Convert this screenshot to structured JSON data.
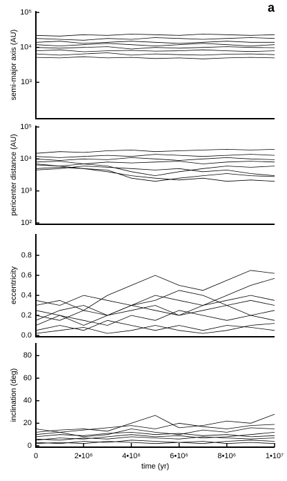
{
  "title": "a",
  "chart_data": [
    {
      "type": "line",
      "ylabel": "semi-major axis (AU)",
      "log": true,
      "color": "#000000",
      "ylim": [
        100,
        100000
      ],
      "yticks": [
        {
          "value": 1000,
          "label": "10³"
        },
        {
          "value": 10000,
          "label": "10⁴"
        },
        {
          "value": 100000,
          "label": "10⁵"
        }
      ],
      "x": [
        0,
        1000000,
        2000000,
        3000000,
        4000000,
        5000000,
        6000000,
        7000000,
        8000000,
        9000000,
        10000000
      ],
      "xlim": [
        0,
        10000000
      ],
      "series": [
        {
          "values": [
            22000,
            21000,
            23000,
            22000,
            24000,
            23000,
            22000,
            24000,
            23000,
            22000,
            23000
          ]
        },
        {
          "values": [
            18000,
            17000,
            16000,
            18000,
            17000,
            19000,
            18000,
            17000,
            18000,
            19000,
            18000
          ]
        },
        {
          "values": [
            14000,
            15000,
            13000,
            14000,
            15000,
            14000,
            13000,
            14000,
            15000,
            14000,
            14000
          ]
        },
        {
          "values": [
            12000,
            11000,
            12000,
            13000,
            12000,
            11000,
            12000,
            13000,
            12000,
            11000,
            12000
          ]
        },
        {
          "values": [
            10000,
            9500,
            10000,
            10500,
            9000,
            10000,
            9500,
            10000,
            10500,
            10000,
            9800
          ]
        },
        {
          "values": [
            8000,
            8500,
            7500,
            8000,
            8200,
            7800,
            8000,
            8500,
            8000,
            7600,
            8000
          ]
        },
        {
          "values": [
            6500,
            6000,
            6500,
            7000,
            6000,
            6500,
            6200,
            6000,
            6400,
            6500,
            6200
          ]
        },
        {
          "values": [
            5200,
            5000,
            5400,
            5000,
            5200,
            4800,
            5000,
            4700,
            5000,
            5200,
            5000
          ]
        }
      ]
    },
    {
      "type": "line",
      "ylabel": "pericenter distance (AU)",
      "log": true,
      "color": "#000000",
      "ylim": [
        100,
        100000
      ],
      "yticks": [
        {
          "value": 100,
          "label": "10²"
        },
        {
          "value": 1000,
          "label": "10³"
        },
        {
          "value": 10000,
          "label": "10⁴"
        },
        {
          "value": 100000,
          "label": "10⁵"
        }
      ],
      "x": [
        0,
        1000000,
        2000000,
        3000000,
        4000000,
        5000000,
        6000000,
        7000000,
        8000000,
        9000000,
        10000000
      ],
      "xlim": [
        0,
        10000000
      ],
      "series": [
        {
          "values": [
            15000,
            17000,
            16000,
            18000,
            19000,
            17000,
            18000,
            19000,
            20000,
            19000,
            20000
          ]
        },
        {
          "values": [
            12000,
            11000,
            12000,
            13000,
            12000,
            14000,
            13000,
            12000,
            13000,
            14000,
            13000
          ]
        },
        {
          "values": [
            10000,
            9000,
            10000,
            9500,
            11000,
            10000,
            9000,
            10000,
            11000,
            10000,
            9500
          ]
        },
        {
          "values": [
            8000,
            8500,
            7000,
            8000,
            7500,
            8000,
            8500,
            7000,
            8000,
            8500,
            8000
          ]
        },
        {
          "values": [
            6500,
            6000,
            7000,
            6000,
            4000,
            3000,
            4000,
            5000,
            6000,
            5500,
            6000
          ]
        },
        {
          "values": [
            5000,
            5500,
            5000,
            4500,
            2500,
            2000,
            2500,
            3000,
            3500,
            3000,
            2800
          ]
        },
        {
          "values": [
            7000,
            6000,
            5000,
            4000,
            3000,
            2500,
            2200,
            2500,
            2000,
            2200,
            2000
          ]
        },
        {
          "values": [
            4500,
            5000,
            6000,
            5500,
            5000,
            4500,
            5000,
            4000,
            4500,
            3500,
            3000
          ]
        }
      ]
    },
    {
      "type": "line",
      "ylabel": "eccentricity",
      "color": "#000000",
      "ylim": [
        0,
        1
      ],
      "yticks": [
        {
          "value": 0,
          "label": "0.0"
        },
        0.2,
        0.4,
        0.6,
        0.8
      ],
      "x": [
        0,
        1000000,
        2000000,
        3000000,
        4000000,
        5000000,
        6000000,
        7000000,
        8000000,
        9000000,
        10000000
      ],
      "xlim": [
        0,
        10000000
      ],
      "series": [
        {
          "values": [
            0.3,
            0.35,
            0.25,
            0.4,
            0.5,
            0.6,
            0.5,
            0.45,
            0.55,
            0.65,
            0.62
          ]
        },
        {
          "values": [
            0.2,
            0.15,
            0.25,
            0.2,
            0.3,
            0.25,
            0.2,
            0.3,
            0.4,
            0.5,
            0.57
          ]
        },
        {
          "values": [
            0.1,
            0.2,
            0.15,
            0.1,
            0.2,
            0.15,
            0.25,
            0.2,
            0.15,
            0.2,
            0.25
          ]
        },
        {
          "values": [
            0.05,
            0.1,
            0.05,
            0.15,
            0.1,
            0.05,
            0.1,
            0.05,
            0.1,
            0.08,
            0.05
          ]
        },
        {
          "values": [
            0.35,
            0.3,
            0.4,
            0.35,
            0.3,
            0.4,
            0.35,
            0.3,
            0.35,
            0.4,
            0.35
          ]
        },
        {
          "values": [
            0.15,
            0.25,
            0.3,
            0.2,
            0.25,
            0.3,
            0.2,
            0.25,
            0.3,
            0.2,
            0.15
          ]
        },
        {
          "values": [
            0.25,
            0.2,
            0.1,
            0.2,
            0.3,
            0.35,
            0.45,
            0.4,
            0.3,
            0.35,
            0.3
          ]
        },
        {
          "values": [
            0.02,
            0.05,
            0.08,
            0.02,
            0.05,
            0.1,
            0.05,
            0.02,
            0.05,
            0.1,
            0.12
          ]
        }
      ]
    },
    {
      "type": "line",
      "ylabel": "inclination (deg)",
      "xlabel": "time (yr)",
      "color": "#000000",
      "ylim": [
        0,
        90
      ],
      "yticks": [
        0,
        20,
        40,
        60,
        80
      ],
      "x": [
        0,
        1000000,
        2000000,
        3000000,
        4000000,
        5000000,
        6000000,
        7000000,
        8000000,
        9000000,
        10000000
      ],
      "xlim": [
        0,
        10000000
      ],
      "xticks": [
        0,
        {
          "value": 2000000,
          "label": "2•10⁶"
        },
        {
          "value": 4000000,
          "label": "4•10⁶"
        },
        {
          "value": 6000000,
          "label": "6•10⁶"
        },
        {
          "value": 8000000,
          "label": "8•10⁶"
        },
        {
          "value": 10000000,
          "label": "1•10⁷"
        }
      ],
      "series": [
        {
          "values": [
            10,
            12,
            8,
            10,
            15,
            12,
            10,
            14,
            12,
            16,
            15
          ]
        },
        {
          "values": [
            5,
            7,
            6,
            8,
            10,
            8,
            9,
            7,
            8,
            10,
            12
          ]
        },
        {
          "values": [
            3,
            2,
            4,
            3,
            5,
            4,
            3,
            2,
            4,
            5,
            4
          ]
        },
        {
          "values": [
            12,
            14,
            15,
            13,
            20,
            27,
            16,
            18,
            22,
            20,
            28
          ]
        },
        {
          "values": [
            8,
            10,
            9,
            11,
            12,
            10,
            11,
            9,
            10,
            8,
            9
          ]
        },
        {
          "values": [
            2,
            3,
            2,
            4,
            3,
            2,
            3,
            4,
            2,
            3,
            2
          ]
        },
        {
          "values": [
            6,
            5,
            7,
            6,
            8,
            7,
            6,
            8,
            7,
            6,
            7
          ]
        },
        {
          "values": [
            15,
            12,
            14,
            16,
            18,
            15,
            20,
            17,
            15,
            18,
            19
          ]
        }
      ]
    }
  ]
}
